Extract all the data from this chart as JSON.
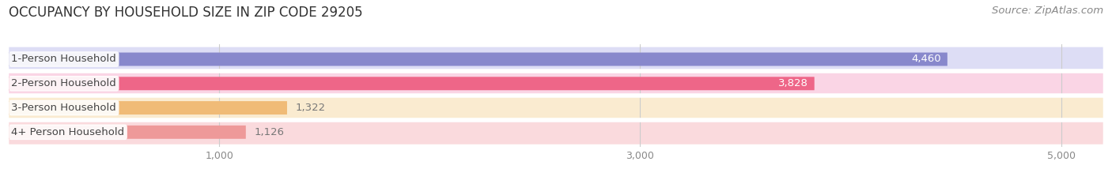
{
  "title": "OCCUPANCY BY HOUSEHOLD SIZE IN ZIP CODE 29205",
  "source": "Source: ZipAtlas.com",
  "categories": [
    "1-Person Household",
    "2-Person Household",
    "3-Person Household",
    "4+ Person Household"
  ],
  "values": [
    4460,
    3828,
    1322,
    1126
  ],
  "bar_colors": [
    "#8888cc",
    "#ee6688",
    "#f0bb77",
    "#ee9999"
  ],
  "bar_bg_colors": [
    "#ddddf5",
    "#fad5e5",
    "#faebd0",
    "#fadadd"
  ],
  "xlim_max": 5200,
  "xticks": [
    1000,
    3000,
    5000
  ],
  "xtick_labels": [
    "1,000",
    "3,000",
    "5,000"
  ],
  "label_color": "#444444",
  "value_color_inside": "#ffffff",
  "value_color_outside": "#777777",
  "title_fontsize": 12,
  "bar_label_fontsize": 9.5,
  "value_fontsize": 9.5,
  "source_fontsize": 9.5,
  "background_color": "#ffffff",
  "row_bg_color": "#f5f5f5",
  "bar_height": 0.55
}
